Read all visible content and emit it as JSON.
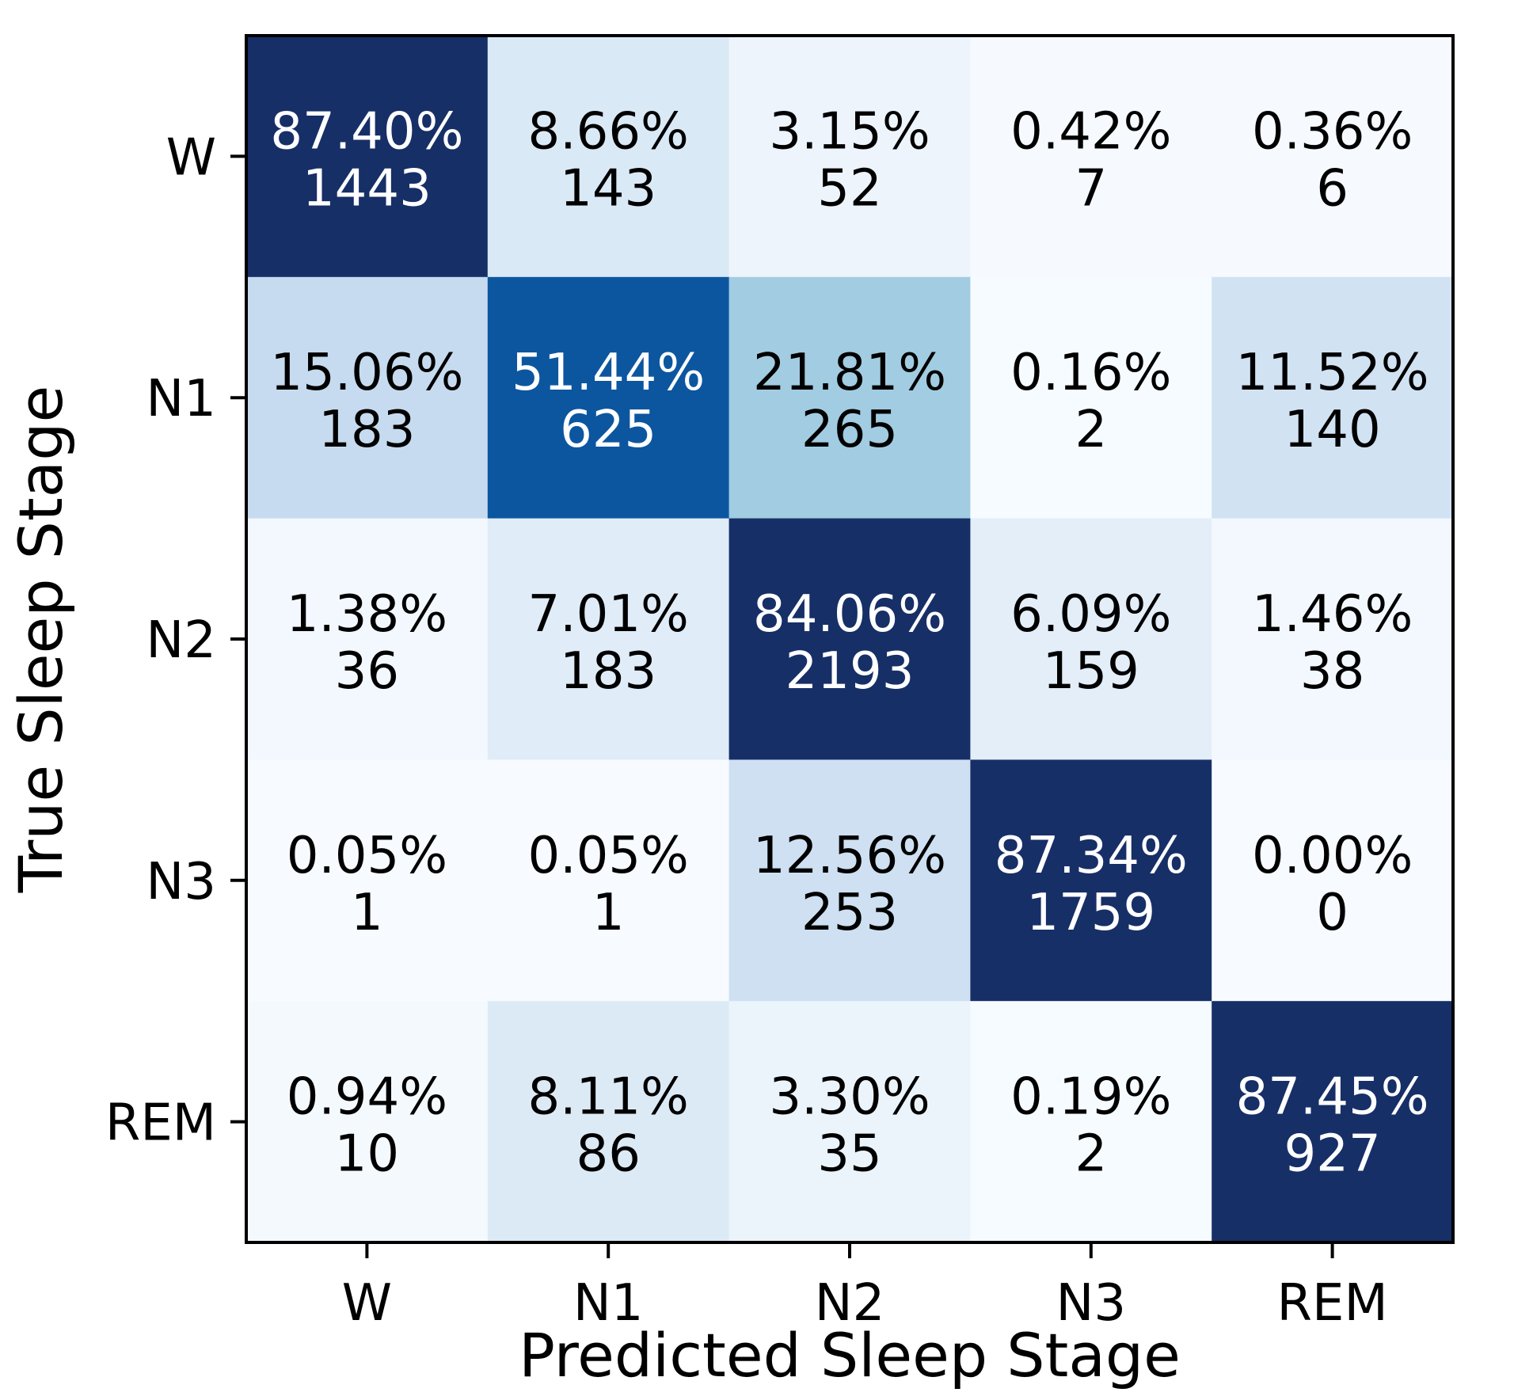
{
  "chart_data": {
    "type": "heatmap",
    "title": "",
    "xlabel": "Predicted Sleep Stage",
    "ylabel": "True Sleep Stage",
    "x_categories": [
      "W",
      "N1",
      "N2",
      "N3",
      "REM"
    ],
    "y_categories": [
      "W",
      "N1",
      "N2",
      "N3",
      "REM"
    ],
    "percent_labels": [
      [
        "87.40%",
        "8.66%",
        "3.15%",
        "0.42%",
        "0.36%"
      ],
      [
        "15.06%",
        "51.44%",
        "21.81%",
        "0.16%",
        "11.52%"
      ],
      [
        "1.38%",
        "7.01%",
        "84.06%",
        "6.09%",
        "1.46%"
      ],
      [
        "0.05%",
        "0.05%",
        "12.56%",
        "87.34%",
        "0.00%"
      ],
      [
        "0.94%",
        "8.11%",
        "3.30%",
        "0.19%",
        "87.45%"
      ]
    ],
    "percent_values": [
      [
        87.4,
        8.66,
        3.15,
        0.42,
        0.36
      ],
      [
        15.06,
        51.44,
        21.81,
        0.16,
        11.52
      ],
      [
        1.38,
        7.01,
        84.06,
        6.09,
        1.46
      ],
      [
        0.05,
        0.05,
        12.56,
        87.34,
        0.0
      ],
      [
        0.94,
        8.11,
        3.3,
        0.19,
        87.45
      ]
    ],
    "counts": [
      [
        "1443",
        "143",
        "52",
        "7",
        "6"
      ],
      [
        "183",
        "625",
        "265",
        "2",
        "140"
      ],
      [
        "36",
        "183",
        "2193",
        "159",
        "38"
      ],
      [
        "1",
        "1",
        "253",
        "1759",
        "0"
      ],
      [
        "10",
        "86",
        "35",
        "2",
        "927"
      ]
    ],
    "colormap": "Blues",
    "color_range": [
      0,
      60
    ],
    "colors": {
      "low": "#f7fbff",
      "mid": "#6699c7",
      "high": "#172f67",
      "text_dark": "#000000",
      "text_light": "#ffffff"
    },
    "grid": false,
    "legend": "none"
  }
}
